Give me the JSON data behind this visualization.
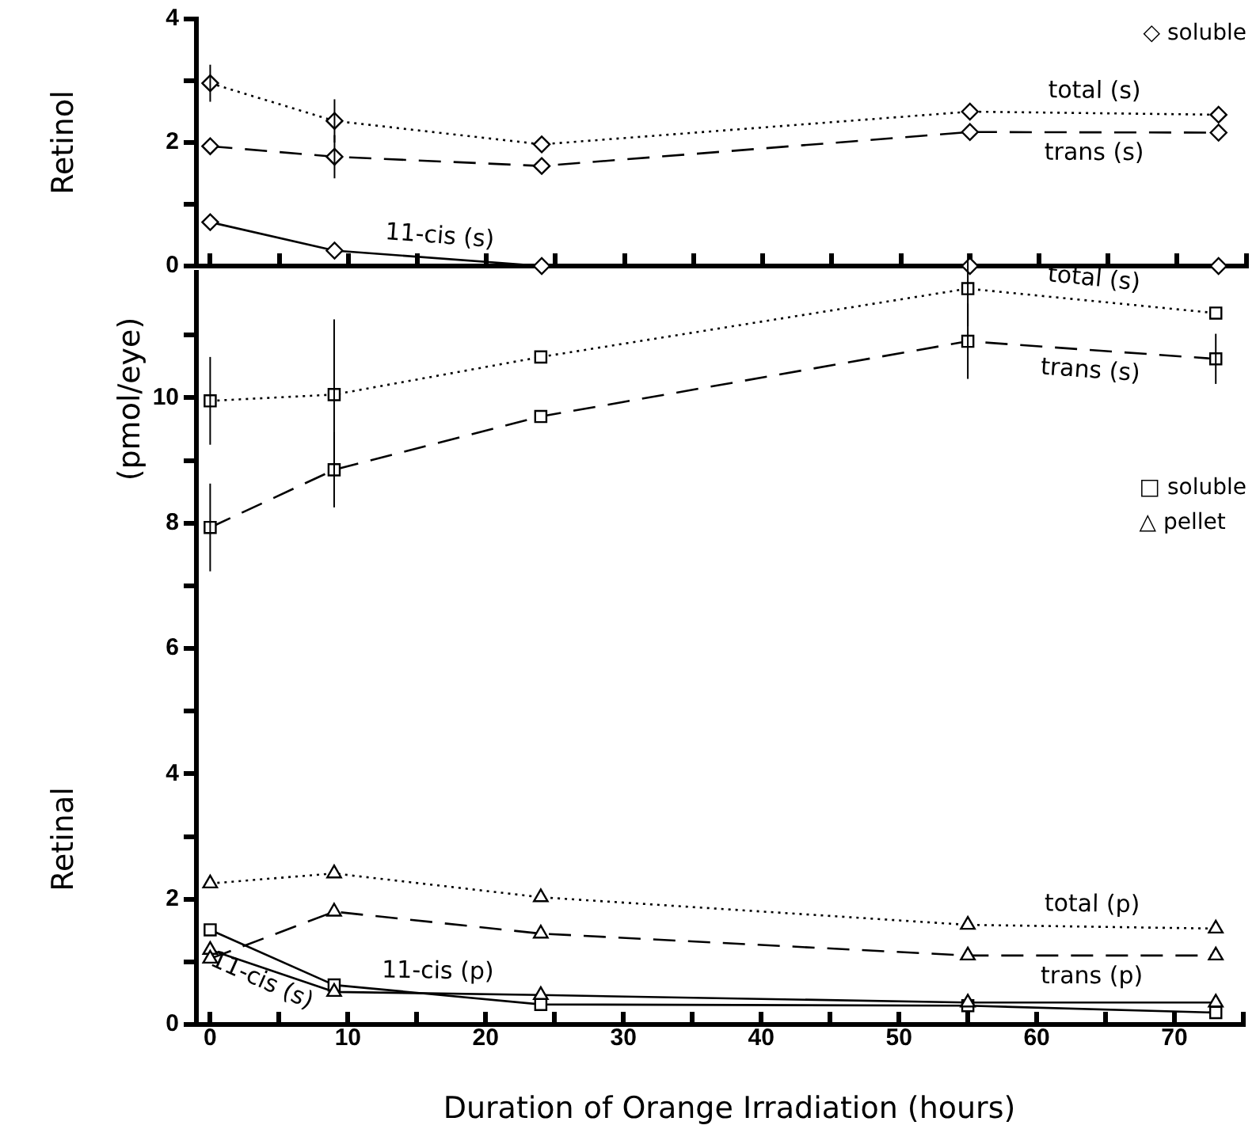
{
  "chart_data": [
    {
      "type": "line",
      "ylabel": "Retinol",
      "x": [
        0,
        9,
        24,
        55,
        73
      ],
      "xlim": [
        -1,
        75
      ],
      "xticks": [
        0,
        {
          "value": 5,
          "label": null
        },
        10,
        {
          "value": 15,
          "label": null
        },
        20,
        {
          "value": 25,
          "label": null
        },
        30,
        {
          "value": 35,
          "label": null
        },
        40,
        {
          "value": 45,
          "label": null
        },
        50,
        {
          "value": 55,
          "label": null
        },
        60,
        {
          "value": 65,
          "label": null
        },
        70,
        {
          "value": 75,
          "label": null
        }
      ],
      "ylim": [
        0,
        4
      ],
      "yticks": [
        0,
        {
          "value": 1,
          "label": null
        },
        2,
        {
          "value": 3,
          "label": null
        },
        4
      ],
      "tick_labels": "y",
      "grid": false,
      "legend": false,
      "annotations": [
        "◇ soluble"
      ],
      "series": [
        {
          "name": "total (s)",
          "color": "#000000",
          "marker": "diamond",
          "line_style": "dotted",
          "values": [
            2.96,
            2.35,
            1.97,
            2.5,
            2.45
          ],
          "errors": [
            0.3,
            0.35,
            null,
            null,
            null
          ]
        },
        {
          "name": "trans (s)",
          "color": "#000000",
          "marker": "diamond",
          "line_style": "dashed",
          "values": [
            1.94,
            1.77,
            1.62,
            2.17,
            2.16
          ],
          "errors": [
            null,
            0.35,
            null,
            null,
            null
          ]
        },
        {
          "name": "11-cis (s)",
          "color": "#000000",
          "marker": "diamond",
          "line_style": "solid",
          "values": [
            0.71,
            0.25,
            0,
            0,
            0
          ]
        }
      ]
    },
    {
      "type": "line",
      "ylabel": "Retinal",
      "xlabel": "Duration of Orange Irradiation (hours)",
      "x": [
        0,
        9,
        24,
        55,
        73
      ],
      "xlim": [
        -1,
        75
      ],
      "xticks": [
        0,
        {
          "value": 5,
          "label": null
        },
        10,
        {
          "value": 15,
          "label": null
        },
        20,
        {
          "value": 25,
          "label": null
        },
        30,
        {
          "value": 35,
          "label": null
        },
        40,
        {
          "value": 45,
          "label": null
        },
        50,
        {
          "value": 55,
          "label": null
        },
        60,
        {
          "value": 65,
          "label": null
        },
        70,
        {
          "value": 75,
          "label": null
        }
      ],
      "ylim": [
        0,
        12
      ],
      "yticks": [
        0,
        {
          "value": 1,
          "label": null
        },
        2,
        {
          "value": 3,
          "label": null
        },
        4,
        {
          "value": 5,
          "label": null
        },
        6,
        {
          "value": 7,
          "label": null
        },
        8,
        {
          "value": 9,
          "label": null
        },
        10,
        {
          "value": 11,
          "label": null
        }
      ],
      "grid": false,
      "legend": false,
      "annotations": [
        "(pmol/eye)",
        "□ soluble",
        "△ pellet"
      ],
      "series": [
        {
          "name": "total (s)",
          "color": "#000000",
          "marker": "square",
          "line_style": "dotted",
          "values": [
            9.95,
            10.05,
            10.65,
            11.74,
            11.35
          ],
          "errors": [
            0.7,
            1.2,
            null,
            0.6,
            null
          ]
        },
        {
          "name": "trans (s)",
          "color": "#000000",
          "marker": "square",
          "line_style": "dashed",
          "values": [
            7.93,
            8.85,
            9.7,
            10.9,
            10.62
          ],
          "errors": [
            0.7,
            0.6,
            null,
            0.6,
            0.4
          ]
        },
        {
          "name": "total (p)",
          "color": "#000000",
          "marker": "triangle",
          "line_style": "dotted",
          "values": [
            2.25,
            2.41,
            2.03,
            1.59,
            1.53
          ]
        },
        {
          "name": "trans (p)",
          "color": "#000000",
          "marker": "triangle",
          "line_style": "dashed",
          "values": [
            1.05,
            1.8,
            1.45,
            1.1,
            1.1
          ]
        },
        {
          "name": "11-cis (p)",
          "color": "#000000",
          "marker": "triangle",
          "line_style": "solid",
          "values": [
            1.19,
            0.52,
            0.47,
            0.35,
            0.35
          ]
        },
        {
          "name": "11-cis (s)",
          "color": "#000000",
          "marker": "square",
          "line_style": "solid",
          "values": [
            1.51,
            0.63,
            0.32,
            0.3,
            0.19
          ]
        }
      ]
    }
  ]
}
